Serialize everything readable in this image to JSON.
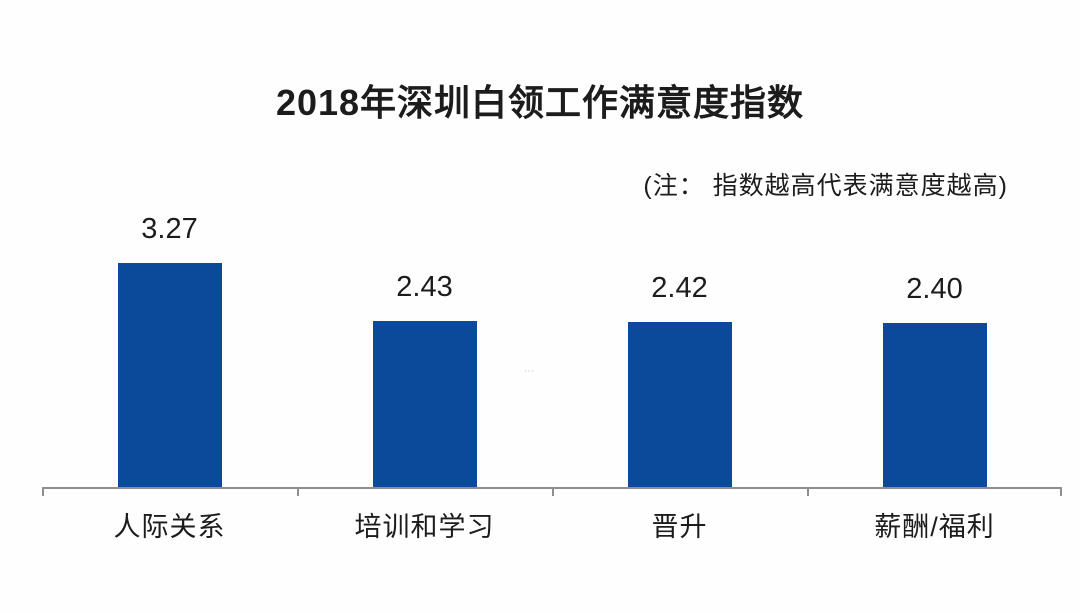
{
  "colors": {
    "bar": "#0B4A9B",
    "axis": "#8E8E8E",
    "text": "#1C1C1C",
    "background": "#FEFEFE"
  },
  "artifact_text": "⋯",
  "chart_data": {
    "type": "bar",
    "title": "2018年深圳白领工作满意度指数",
    "note": "(注： 指数越高代表满意度越高)",
    "categories": [
      "人际关系",
      "培训和学习",
      "晋升",
      "薪酬/福利"
    ],
    "values": [
      3.27,
      2.43,
      2.42,
      2.4
    ],
    "value_labels": [
      "3.27",
      "2.43",
      "2.42",
      "2.40"
    ],
    "xlabel": "",
    "ylabel": "",
    "ylim": [
      0,
      3.75
    ],
    "bar_color": "#0B4A9B",
    "grid": false,
    "legend": false,
    "value_labels_position": "above-bars",
    "axis_ticks": 5
  }
}
